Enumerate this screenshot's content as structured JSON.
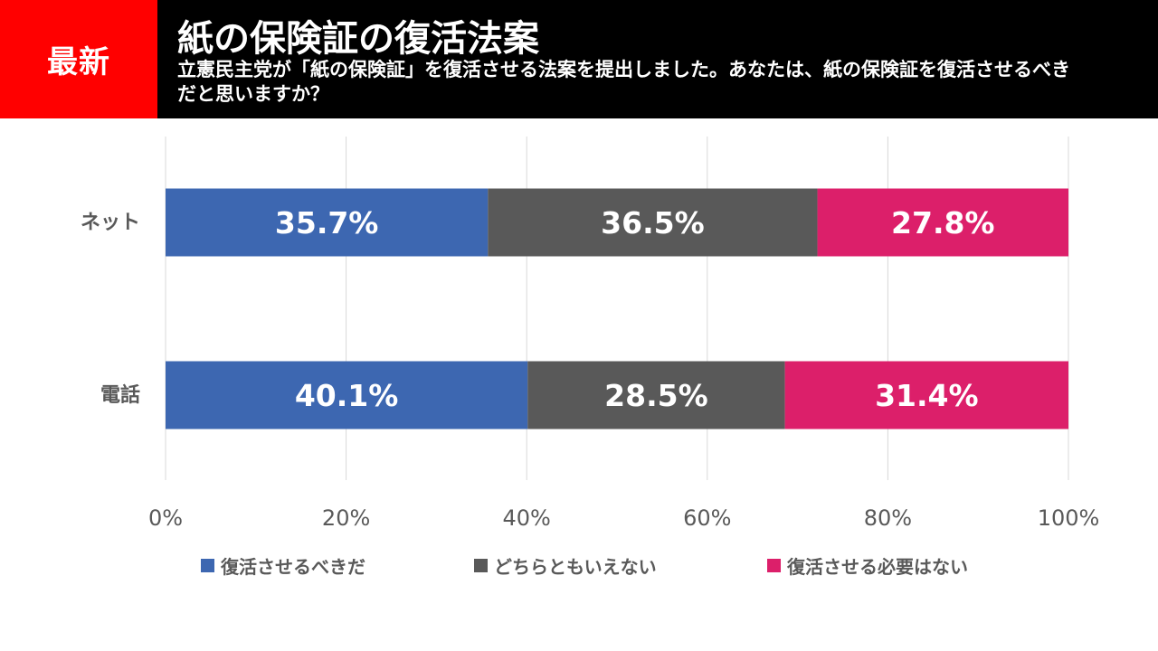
{
  "header": {
    "badge": "最新",
    "title": "紙の保険証の復活法案",
    "subtitle": "立憲民主党が「紙の保険証」を復活させる法案を提出しました。あなたは、紙の保険証を復活させるべきだと思いますか？"
  },
  "colors": {
    "header_bg": "#000000",
    "badge_bg": "#ff0000",
    "should_revive": "#3d67b1",
    "neutral": "#595959",
    "no_need": "#dc1f6a"
  },
  "chart_data": {
    "type": "bar",
    "orientation": "horizontal",
    "stacked": true,
    "categories": [
      "ネット",
      "電話"
    ],
    "series": [
      {
        "name": "復活させるべきだ",
        "values": [
          35.7,
          40.1
        ],
        "labels": [
          "35.7%",
          "40.1%"
        ],
        "color": "#3d67b1"
      },
      {
        "name": "どちらともいえない",
        "values": [
          36.5,
          28.5
        ],
        "labels": [
          "36.5%",
          "28.5%"
        ],
        "color": "#595959"
      },
      {
        "name": "復活させる必要はない",
        "values": [
          27.8,
          31.4
        ],
        "labels": [
          "27.8%",
          "31.4%"
        ],
        "color": "#dc1f6a"
      }
    ],
    "xlim": [
      0,
      100
    ],
    "xticks": [
      0,
      20,
      40,
      60,
      80,
      100
    ],
    "xtick_labels": [
      "0%",
      "20%",
      "40%",
      "60%",
      "80%",
      "100%"
    ],
    "grid": true,
    "legend_position": "bottom"
  }
}
